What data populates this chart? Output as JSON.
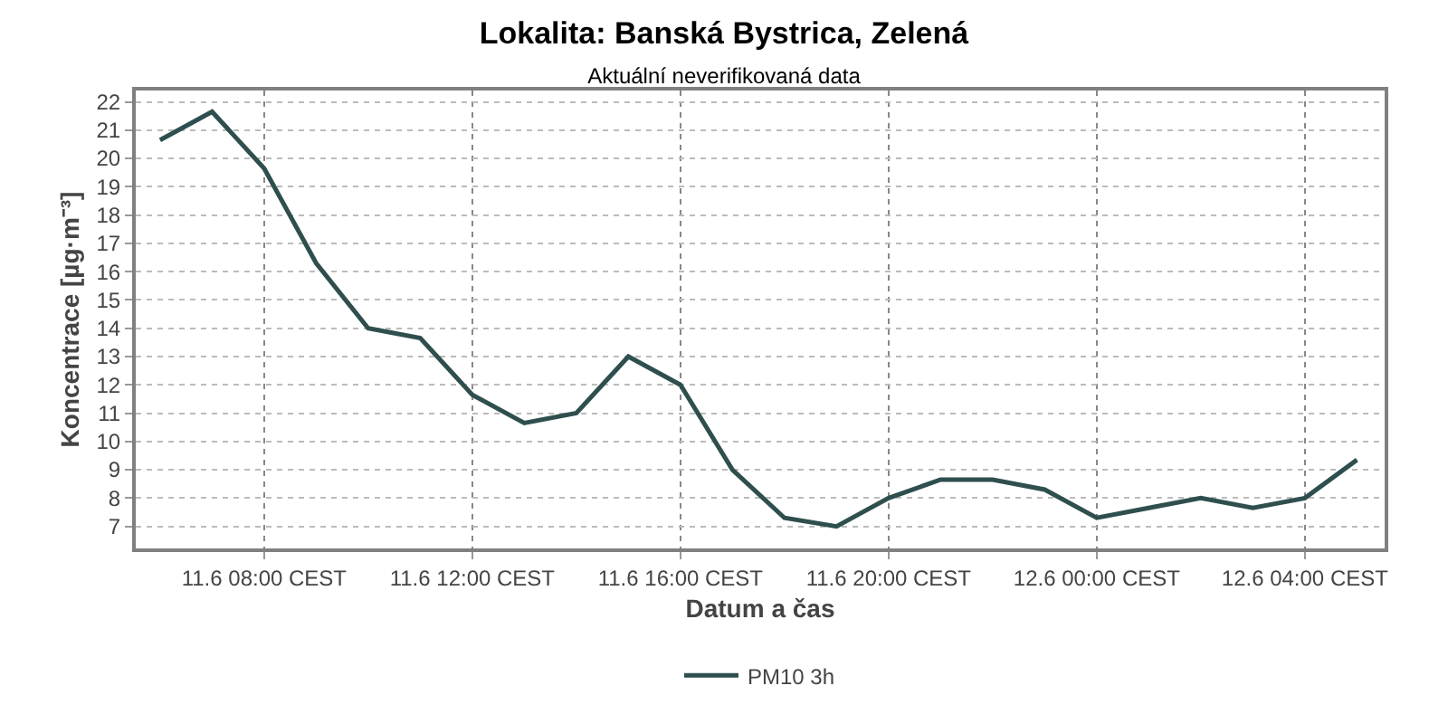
{
  "chart_data": {
    "type": "line",
    "title": "Lokalita: Banská Bystrica, Zelená",
    "subtitle": "Aktuální neverifikovaná data",
    "xlabel": "Datum a čas",
    "ylabel": "Koncentrace [µg·m⁻³]",
    "x": [
      "--06-11T06:00",
      "--06-11T07:00",
      "--06-11T08:00",
      "--06-11T09:00",
      "--06-11T10:00",
      "--06-11T11:00",
      "--06-11T12:00",
      "--06-11T13:00",
      "--06-11T14:00",
      "--06-11T15:00",
      "--06-11T16:00",
      "--06-11T17:00",
      "--06-11T18:00",
      "--06-11T19:00",
      "--06-11T20:00",
      "--06-11T21:00",
      "--06-11T22:00",
      "--06-11T23:00",
      "--06-12T00:00",
      "--06-12T01:00",
      "--06-12T02:00",
      "--06-12T03:00",
      "--06-12T04:00",
      "--06-12T05:00"
    ],
    "series": [
      {
        "name": "PM10 3h",
        "color": "#2f4f4f",
        "values": [
          20.65,
          21.65,
          19.65,
          16.3,
          14.0,
          13.65,
          11.65,
          10.65,
          11.0,
          13.0,
          12.0,
          9.0,
          7.3,
          7.0,
          8.0,
          8.65,
          8.65,
          8.3,
          7.3,
          7.65,
          8.0,
          7.65,
          8.0,
          9.35
        ]
      }
    ],
    "xlim": [
      "--06-11T05:32",
      "--06-12T05:32"
    ],
    "xticks": [
      {
        "value": "--06-11T08:00",
        "label": "11.6 08:00 CEST"
      },
      {
        "value": "--06-11T12:00",
        "label": "11.6 12:00 CEST"
      },
      {
        "value": "--06-11T16:00",
        "label": "11.6 16:00 CEST"
      },
      {
        "value": "--06-11T20:00",
        "label": "11.6 20:00 CEST"
      },
      {
        "value": "--06-12T00:00",
        "label": "12.6 00:00 CEST"
      },
      {
        "value": "--06-12T04:00",
        "label": "12.6 04:00 CEST"
      }
    ],
    "ylim": [
      6.22,
      22.4
    ],
    "yticks": [
      7,
      8,
      9,
      10,
      11,
      12,
      13,
      14,
      15,
      16,
      17,
      18,
      19,
      20,
      21,
      22
    ],
    "grid": true,
    "legend": "bottom",
    "marker": "none",
    "line_style": "solid"
  }
}
